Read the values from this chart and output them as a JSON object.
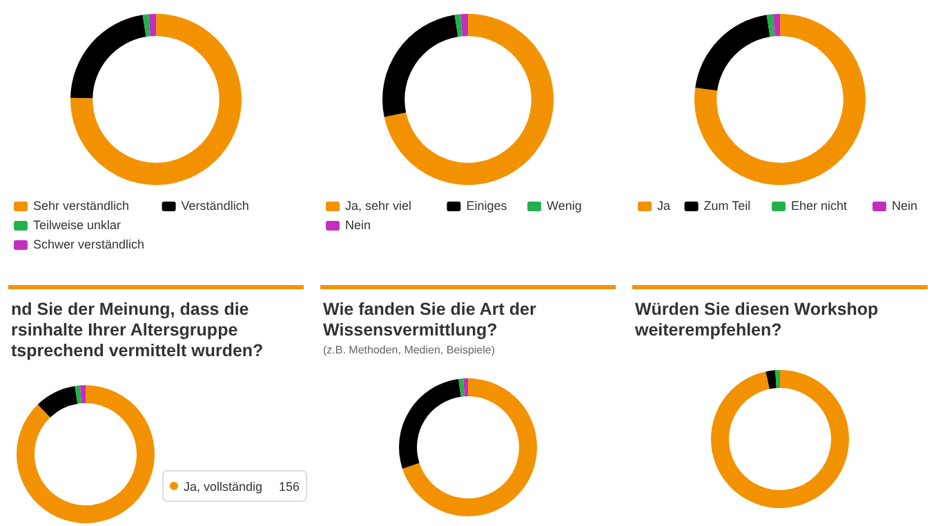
{
  "chart_data": [
    {
      "type": "donut",
      "categories": [
        "Sehr verständlich",
        "Verständlich",
        "Teilweise unklar",
        "Schwer verständlich"
      ],
      "values": [
        75.3,
        22.2,
        1.1,
        1.4
      ],
      "colors": [
        "#f39200",
        "#000000",
        "#22b24c",
        "#c22fbf"
      ],
      "legend": "bottom"
    },
    {
      "type": "donut",
      "categories": [
        "Ja, sehr viel",
        "Einiges",
        "Wenig",
        "Nein"
      ],
      "values": [
        71.7,
        25.8,
        1.1,
        1.4
      ],
      "colors": [
        "#f39200",
        "#000000",
        "#22b24c",
        "#c22fbf"
      ],
      "legend": "bottom"
    },
    {
      "type": "donut",
      "categories": [
        "Ja",
        "Zum Teil",
        "Eher nicht",
        "Nein"
      ],
      "values": [
        77.2,
        20.3,
        1.2,
        1.3
      ],
      "colors": [
        "#f39200",
        "#000000",
        "#22b24c",
        "#c22fbf"
      ],
      "legend": "bottom"
    },
    {
      "type": "donut",
      "title": "nd Sie der Meinung, dass die\nrsinhalte Ihrer Altersgruppe\ntsprechend vermittelt wurden?",
      "categories": [
        null,
        null,
        null,
        null
      ],
      "values": [
        87.8,
        9.7,
        1.2,
        1.3
      ],
      "colors": [
        "#f39200",
        "#000000",
        "#22b24c",
        "#c22fbf"
      ],
      "annotations": [
        "Ja, vollständig",
        "156"
      ]
    },
    {
      "type": "donut",
      "title": "Wie fanden Sie die Art der\nWissensvermittlung?",
      "subtitle": "(z.B. Methoden, Medien, Beispiele)",
      "categories": [
        null,
        null,
        null,
        null
      ],
      "values": [
        70,
        27.8,
        1.1,
        1.1
      ],
      "colors": [
        "#f39200",
        "#000000",
        "#22b24c",
        "#c22fbf"
      ]
    },
    {
      "type": "donut",
      "title": "Würden Sie diesen Workshop\nweiterempfehlen?",
      "categories": [
        null,
        null,
        null
      ],
      "values": [
        96.7,
        2.2,
        1.1
      ],
      "colors": [
        "#f39200",
        "#000000",
        "#22b24c"
      ]
    }
  ]
}
